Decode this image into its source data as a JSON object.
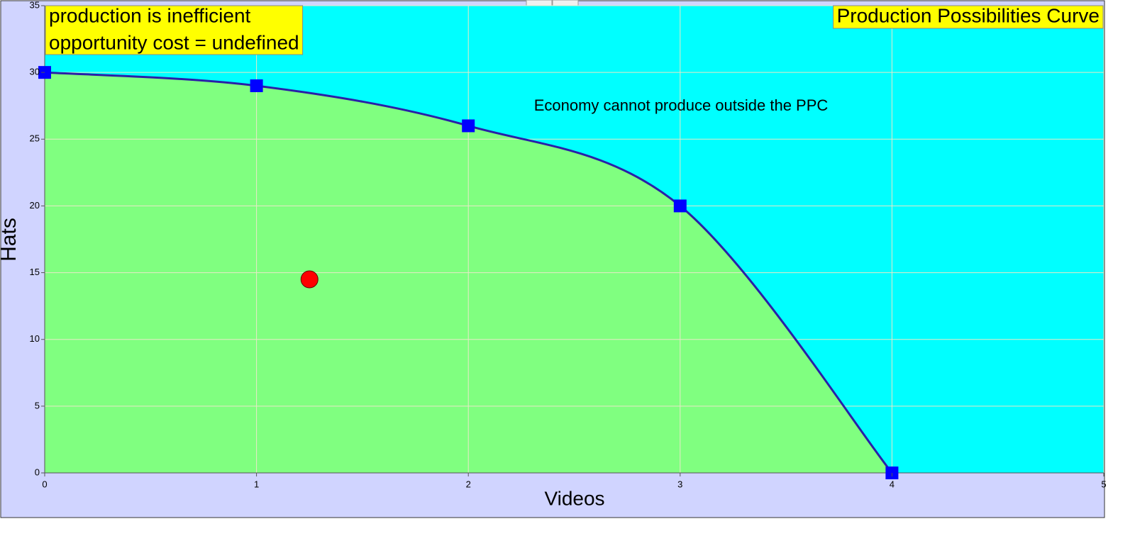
{
  "chart_data": {
    "type": "line",
    "title": "Production Possibilities Curve",
    "annotations": [
      "production is inefficient",
      "opportunity cost = undefined",
      "Economy cannot produce outside the PPC"
    ],
    "x_label": "Videos",
    "y_label": "Hats",
    "x": [
      0,
      1,
      2,
      3,
      4
    ],
    "values": [
      30,
      29,
      26,
      20,
      0
    ],
    "color": "#2a1fa8",
    "marker_color": "#0000ff",
    "fill_color": "#80ff80",
    "background_color": "#00ffff",
    "point": {
      "x": 1.25,
      "y": 14.5,
      "color": "#ff0000"
    },
    "xlim": [
      0,
      5
    ],
    "xticks": [
      0,
      1,
      2,
      3,
      4,
      5
    ],
    "ylim": [
      0,
      35
    ],
    "yticks": [
      0,
      5,
      10,
      15,
      20,
      25,
      30,
      35
    ],
    "grid": true
  }
}
